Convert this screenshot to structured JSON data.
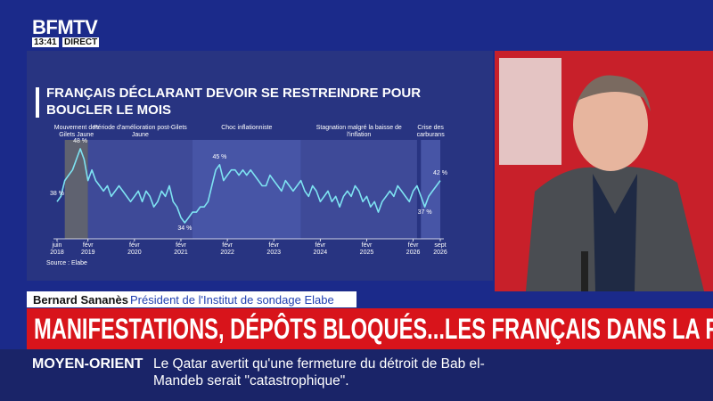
{
  "header": {
    "channel": "BFMTV",
    "time": "13:41",
    "status": "DIRECT"
  },
  "chart_data": {
    "type": "line",
    "title": "FRANÇAIS DÉCLARANT DEVOIR SE RESTREINDRE POUR BOUCLER LE MOIS",
    "source": "Source : Elabe",
    "color": "#7ee3f2",
    "categories": [
      "juin 2018",
      null,
      null,
      null,
      null,
      null,
      null,
      null,
      "févr 2019",
      null,
      null,
      null,
      null,
      null,
      null,
      null,
      null,
      null,
      null,
      null,
      "févr 2020",
      null,
      null,
      null,
      null,
      null,
      null,
      null,
      null,
      null,
      null,
      null,
      "févr 2021",
      null,
      null,
      null,
      null,
      null,
      null,
      null,
      null,
      null,
      null,
      null,
      "févr 2022",
      null,
      null,
      null,
      null,
      null,
      null,
      null,
      null,
      null,
      null,
      null,
      "févr 2023",
      null,
      null,
      null,
      null,
      null,
      null,
      null,
      null,
      null,
      null,
      null,
      "févr 2024",
      null,
      null,
      null,
      null,
      null,
      null,
      null,
      null,
      null,
      null,
      null,
      "févr 2025",
      null,
      null,
      null,
      null,
      null,
      null,
      null,
      null,
      null,
      null,
      null,
      "févr 2026",
      null,
      null,
      null,
      null,
      null,
      null,
      "sept 2026"
    ],
    "values": [
      38,
      39,
      42,
      43,
      44,
      46,
      48,
      46,
      42,
      44,
      42,
      41,
      40,
      41,
      39,
      40,
      41,
      40,
      39,
      38,
      39,
      40,
      38,
      40,
      39,
      37,
      38,
      40,
      39,
      41,
      38,
      37,
      35,
      34,
      35,
      36,
      36,
      37,
      37,
      38,
      41,
      44,
      45,
      42,
      43,
      44,
      44,
      43,
      44,
      43,
      44,
      43,
      42,
      41,
      41,
      43,
      42,
      41,
      40,
      42,
      41,
      40,
      41,
      42,
      40,
      39,
      41,
      40,
      38,
      39,
      40,
      38,
      39,
      37,
      39,
      40,
      39,
      41,
      40,
      38,
      39,
      37,
      38,
      36,
      38,
      39,
      40,
      39,
      41,
      40,
      39,
      38,
      40,
      41,
      39,
      37,
      39,
      40,
      41,
      42
    ],
    "value_labels": [
      "38 %",
      null,
      null,
      null,
      null,
      null,
      "48 %",
      null,
      null,
      null,
      null,
      null,
      null,
      null,
      null,
      null,
      null,
      null,
      null,
      null,
      null,
      null,
      null,
      null,
      null,
      null,
      null,
      null,
      null,
      null,
      null,
      null,
      null,
      "34 %",
      null,
      null,
      null,
      null,
      null,
      null,
      null,
      null,
      "45 %",
      null,
      null,
      null,
      null,
      null,
      null,
      null,
      null,
      null,
      null,
      null,
      null,
      null,
      null,
      null,
      null,
      null,
      null,
      null,
      null,
      null,
      null,
      null,
      null,
      null,
      null,
      null,
      null,
      null,
      null,
      null,
      null,
      null,
      null,
      null,
      null,
      null,
      null,
      null,
      null,
      null,
      null,
      null,
      null,
      null,
      null,
      null,
      null,
      null,
      null,
      null,
      null,
      "37 %",
      null,
      null,
      null,
      "42 %"
    ],
    "periods": [
      {
        "label": "Mouvement des Gilets Jaune",
        "from": 2,
        "to": 8,
        "color": "#5f6270"
      },
      {
        "label": "Période d'amélioration post-Gilets Jaune",
        "from": 8,
        "to": 35,
        "color": "#3e4a98"
      },
      {
        "label": "Choc inflationniste",
        "from": 35,
        "to": 63,
        "color": "#4755a6"
      },
      {
        "label": "Stagnation malgré la baisse de l'inflation",
        "from": 63,
        "to": 93,
        "color": "#3e4a98"
      },
      {
        "label": "Crise des carburans",
        "from": 94,
        "to": 99,
        "color": "#4755a6"
      }
    ]
  },
  "lower_third": {
    "name": "Bernard Sananès",
    "role": "Président de l'Institut de sondage Elabe",
    "headline": "MANIFESTATIONS, DÉPÔTS BLOQUÉS...LES FRANÇAIS DANS LA RUE"
  },
  "ticker": {
    "topic": "MOYEN-ORIENT",
    "text": "Le Qatar avertit qu'une fermeture du détroit de Bab el-Mandeb serait \"catastrophique\"."
  }
}
